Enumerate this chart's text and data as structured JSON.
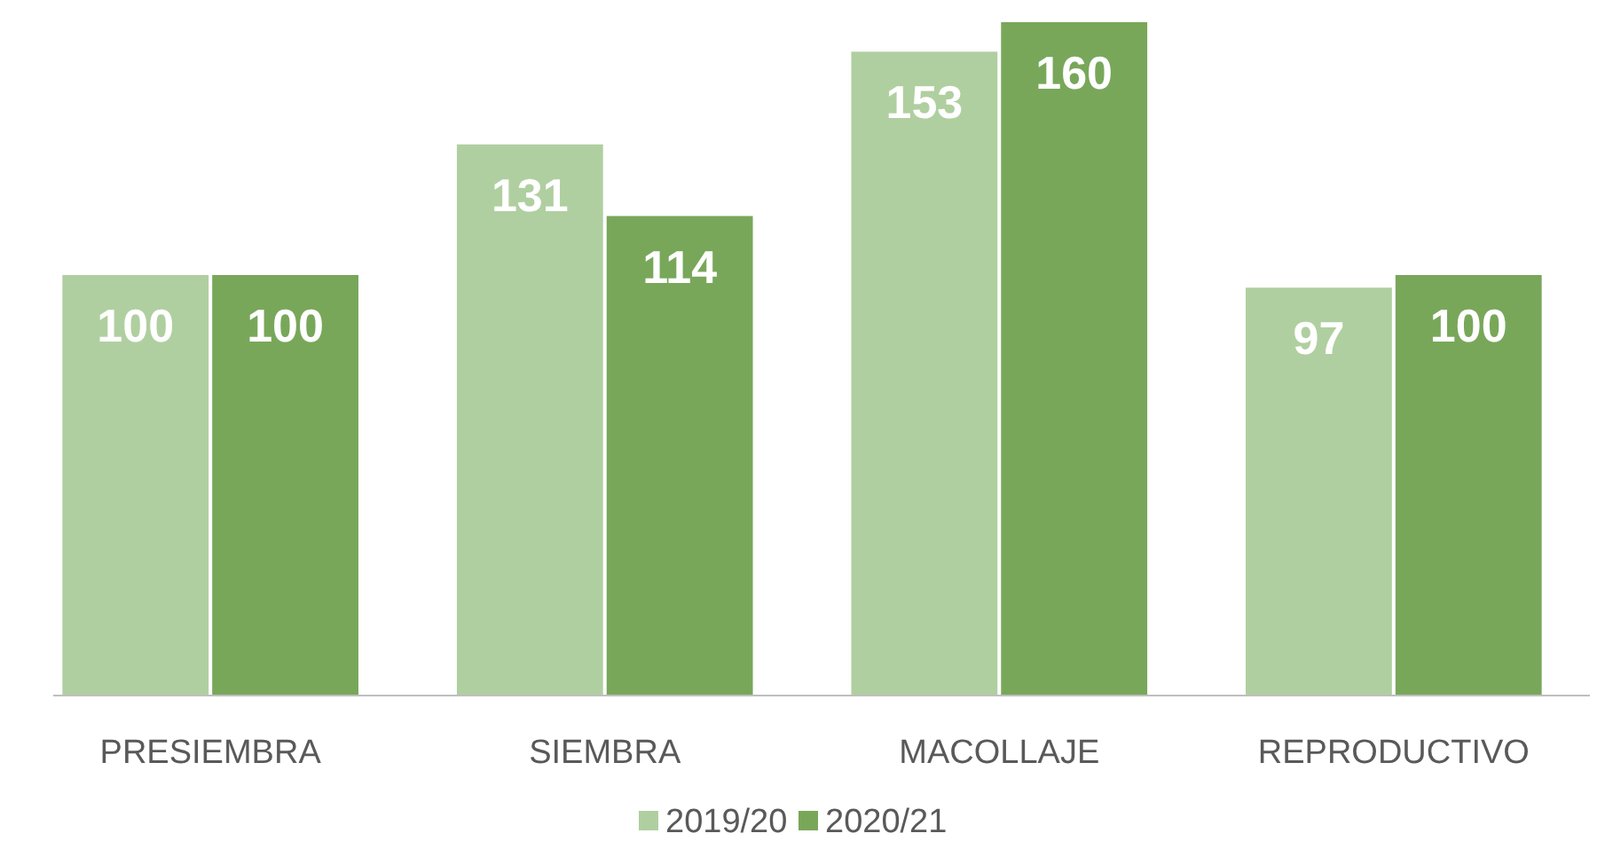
{
  "chart_data": {
    "type": "bar",
    "categories": [
      "PRESIEMBRA",
      "SIEMBRA",
      "MACOLLAJE",
      "REPRODUCTIVO"
    ],
    "series": [
      {
        "name": "2019/20",
        "color": "#b0cfa0",
        "values": [
          100,
          131,
          153,
          97
        ]
      },
      {
        "name": "2020/21",
        "color": "#78a75a",
        "values": [
          100,
          114,
          160,
          100
        ]
      }
    ],
    "data_labels": true,
    "legend": "bottom"
  }
}
